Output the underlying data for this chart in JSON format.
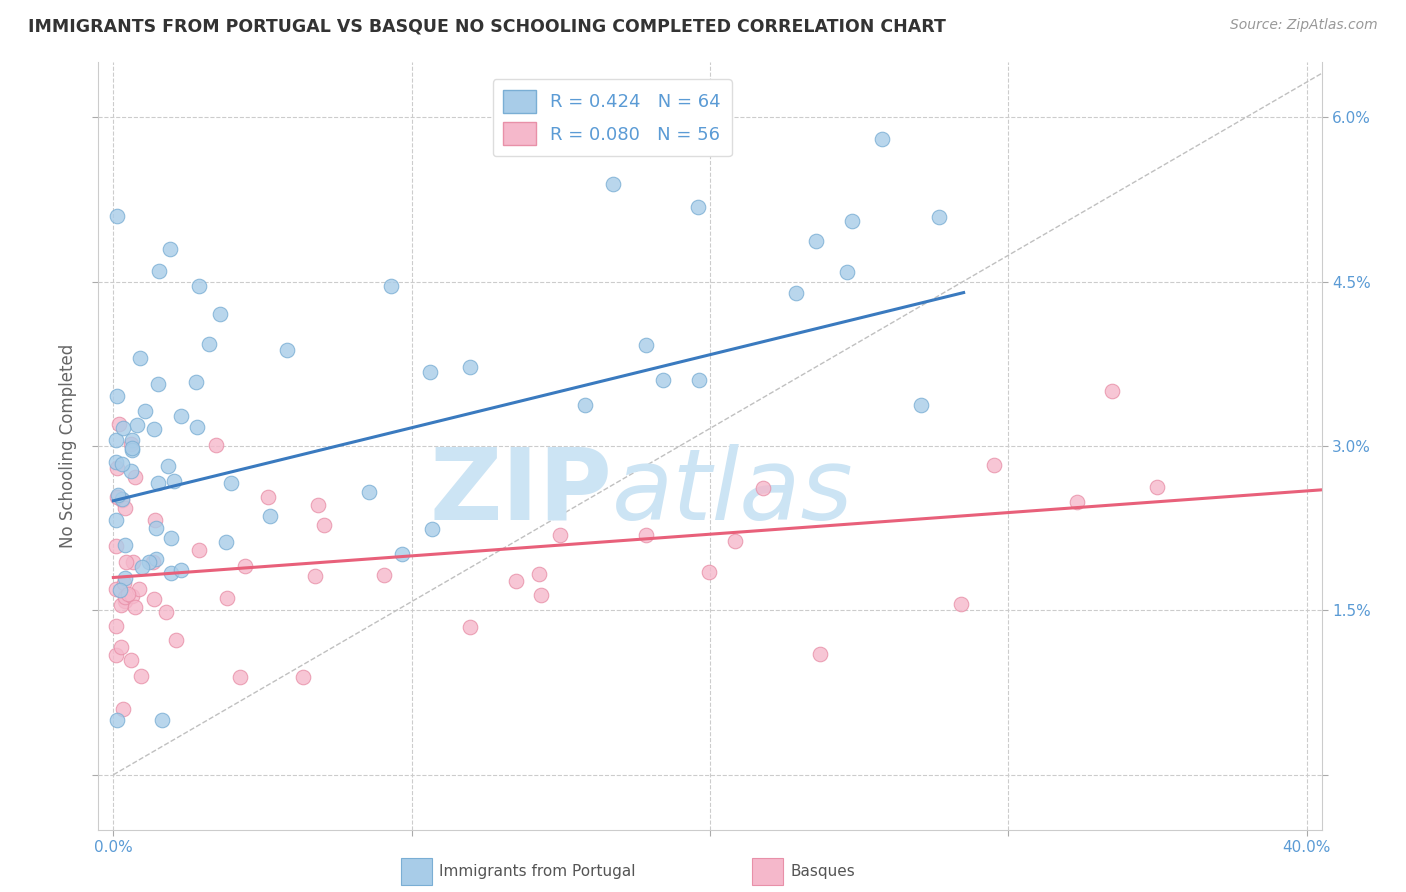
{
  "title": "IMMIGRANTS FROM PORTUGAL VS BASQUE NO SCHOOLING COMPLETED CORRELATION CHART",
  "source_text": "Source: ZipAtlas.com",
  "ylabel": "No Schooling Completed",
  "watermark_zip": "ZIP",
  "watermark_atlas": "atlas",
  "xlim": [
    -0.005,
    0.405
  ],
  "ylim": [
    -0.005,
    0.065
  ],
  "xticks": [
    0.0,
    0.1,
    0.2,
    0.3,
    0.4
  ],
  "yticks": [
    0.0,
    0.015,
    0.03,
    0.045,
    0.06
  ],
  "xticklabels": [
    "0.0%",
    "",
    "",
    "",
    "40.0%"
  ],
  "yticklabels_right": [
    "",
    "1.5%",
    "3.0%",
    "4.5%",
    "6.0%"
  ],
  "legend_label1": "R = 0.424   N = 64",
  "legend_label2": "R = 0.080   N = 56",
  "series1_color": "#a8cce8",
  "series2_color": "#f5b8cb",
  "series1_edge": "#7aaed4",
  "series2_edge": "#e890a8",
  "line1_color": "#3a7abf",
  "line2_color": "#e8607a",
  "dash_line_color": "#c0c0c0",
  "title_color": "#333333",
  "axis_label_color": "#5b9bd5",
  "ylabel_color": "#666666",
  "watermark_color": "#cce4f4",
  "background_color": "#ffffff",
  "grid_color": "#cccccc",
  "legend_patch1_color": "#a8cce8",
  "legend_patch2_color": "#f5b8cb",
  "legend_patch1_edge": "#7aaed4",
  "legend_patch2_edge": "#e890a8",
  "bottom_legend_text_color": "#555555",
  "line1_x_start": 0.0,
  "line1_x_end": 0.285,
  "line1_y_start": 0.025,
  "line1_y_end": 0.044,
  "line2_x_start": 0.0,
  "line2_x_end": 0.405,
  "line2_y_start": 0.018,
  "line2_y_end": 0.026
}
